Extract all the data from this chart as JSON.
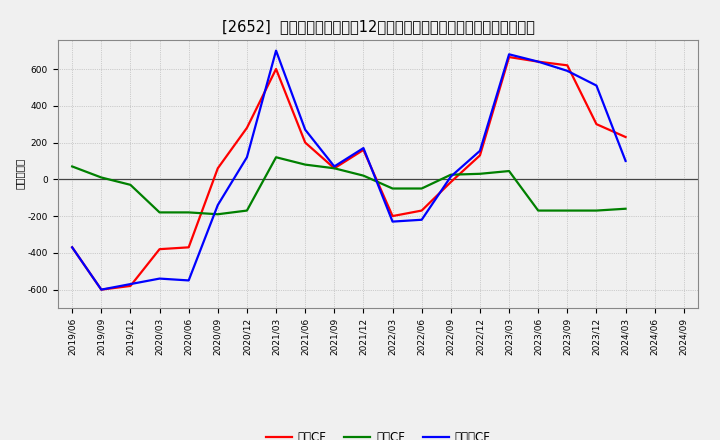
{
  "title": "[2652]  キャッシュフローの12か月移動合計の対前年同期増減額の推移",
  "ylabel": "（百万円）",
  "ylim": [
    -700,
    760
  ],
  "yticks": [
    -600,
    -400,
    -200,
    0,
    200,
    400,
    600
  ],
  "dates": [
    "2019/06",
    "2019/09",
    "2019/12",
    "2020/03",
    "2020/06",
    "2020/09",
    "2020/12",
    "2021/03",
    "2021/06",
    "2021/09",
    "2021/12",
    "2022/03",
    "2022/06",
    "2022/09",
    "2022/12",
    "2023/03",
    "2023/06",
    "2023/09",
    "2023/12",
    "2024/03",
    "2024/06",
    "2024/09"
  ],
  "eigyo_cf": [
    -370,
    -600,
    -580,
    -380,
    -370,
    60,
    280,
    600,
    200,
    60,
    160,
    -200,
    -170,
    -15,
    130,
    665,
    640,
    620,
    300,
    230,
    null,
    null
  ],
  "toshi_cf": [
    70,
    10,
    -30,
    -180,
    -180,
    -190,
    -170,
    120,
    80,
    60,
    20,
    -50,
    -50,
    25,
    30,
    45,
    -170,
    -170,
    -170,
    -160,
    null,
    null
  ],
  "free_cf": [
    -370,
    -600,
    -570,
    -540,
    -550,
    -140,
    120,
    700,
    270,
    70,
    170,
    -230,
    -220,
    15,
    155,
    680,
    640,
    590,
    510,
    100,
    null,
    null
  ],
  "eigyo_color": "#ff0000",
  "toshi_color": "#008000",
  "free_color": "#0000ff",
  "bg_color": "#f0f0f0",
  "plot_bg_color": "#f0f0f0",
  "grid_color": "#aaaaaa",
  "zero_line_color": "#444444",
  "title_fontsize": 10.5,
  "label_fontsize": 7.5,
  "tick_fontsize": 6.5,
  "legend_fontsize": 8.5,
  "line_width": 1.6,
  "legend_eigyo": "営業CF",
  "legend_toshi": "投資CF",
  "legend_free": "フリーCF"
}
